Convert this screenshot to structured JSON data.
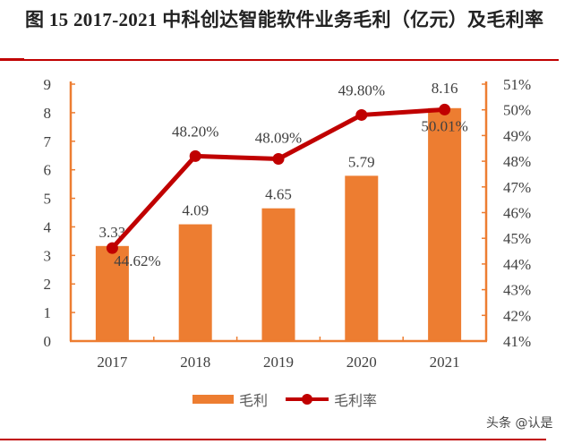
{
  "header": {
    "title": "图  15 2017-2021 中科创达智能软件业务毛利（亿元）及毛利率"
  },
  "watermark": "头条 @认是",
  "colors": {
    "bar": "#ed7d31",
    "line": "#c00000",
    "axis": "#ed7d31"
  },
  "chart_data": {
    "type": "bar+line",
    "title": "2017-2021 中科创达智能软件业务毛利（亿元）及毛利率",
    "categories": [
      "2017",
      "2018",
      "2019",
      "2020",
      "2021"
    ],
    "series": [
      {
        "name": "毛利",
        "type": "bar",
        "axis": "left",
        "values": [
          3.33,
          4.09,
          4.65,
          5.79,
          8.16
        ],
        "labels": [
          "3.33",
          "4.09",
          "4.65",
          "5.79",
          "8.16"
        ]
      },
      {
        "name": "毛利率",
        "type": "line",
        "axis": "right",
        "values": [
          44.62,
          48.2,
          48.09,
          49.8,
          50.01
        ],
        "labels": [
          "44.62%",
          "48.20%",
          "48.09%",
          "49.80%",
          "50.01%"
        ]
      }
    ],
    "y_left": {
      "range": [
        0,
        9
      ],
      "ticks": [
        "0",
        "1",
        "2",
        "3",
        "4",
        "5",
        "6",
        "7",
        "8",
        "9"
      ]
    },
    "y_right": {
      "range": [
        41,
        51
      ],
      "ticks": [
        "41%",
        "42%",
        "43%",
        "44%",
        "45%",
        "46%",
        "47%",
        "48%",
        "49%",
        "50%",
        "51%"
      ]
    },
    "grid": false,
    "legend": {
      "position": "bottom",
      "entries": [
        "毛利",
        "毛利率"
      ]
    }
  }
}
